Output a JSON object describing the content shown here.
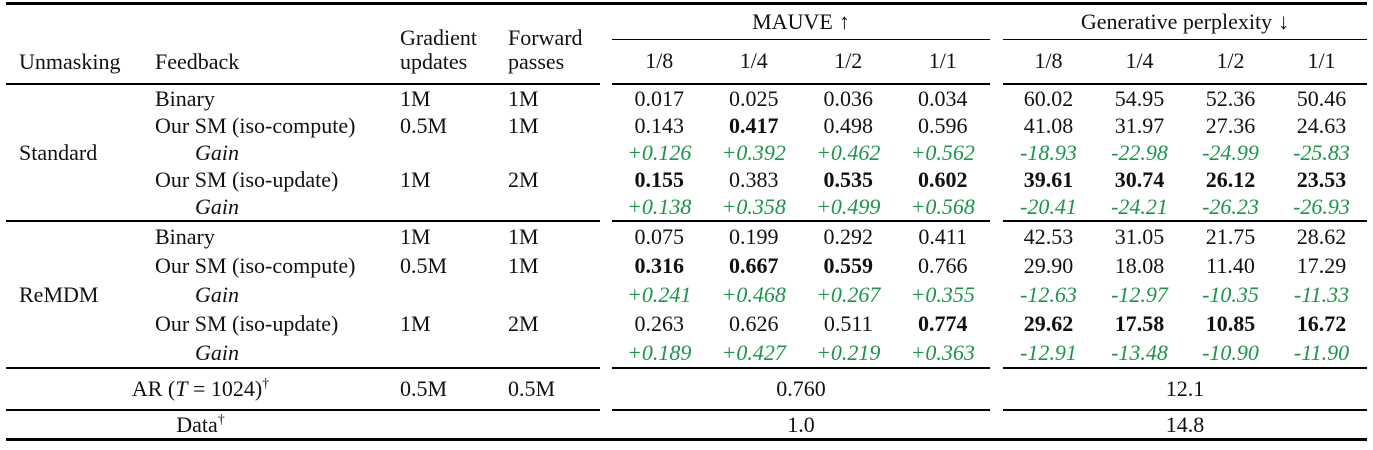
{
  "table": {
    "headers": {
      "unmasking": "Unmasking",
      "feedback": "Feedback",
      "gradient_line1": "Gradient",
      "gradient_line2": "updates",
      "forward_line1": "Forward",
      "forward_line2": "passes",
      "mauve_title": "MAUVE",
      "mauve_arrow": "↑",
      "ppl_title": "Generative perplexity",
      "ppl_arrow": "↓",
      "subcols": [
        "1/8",
        "1/4",
        "1/2",
        "1/1"
      ]
    },
    "colors": {
      "gain_green": "#1a9648",
      "text": "#111111"
    },
    "sections": [
      {
        "unmasking": "Standard",
        "rows": [
          {
            "feedback": "Binary",
            "grad": "1M",
            "fwd": "1M",
            "mauve": [
              "0.017",
              "0.025",
              "0.036",
              "0.034"
            ],
            "mauve_bold": [
              false,
              false,
              false,
              false
            ],
            "ppl": [
              "60.02",
              "54.95",
              "52.36",
              "50.46"
            ],
            "ppl_bold": [
              false,
              false,
              false,
              false
            ]
          },
          {
            "feedback": "Our SM (iso-compute)",
            "grad": "0.5M",
            "fwd": "1M",
            "mauve": [
              "0.143",
              "0.417",
              "0.498",
              "0.596"
            ],
            "mauve_bold": [
              false,
              true,
              false,
              false
            ],
            "ppl": [
              "41.08",
              "31.97",
              "27.36",
              "24.63"
            ],
            "ppl_bold": [
              false,
              false,
              false,
              false
            ]
          },
          {
            "feedback": "Gain",
            "is_gain": true,
            "grad": "",
            "fwd": "",
            "mauve": [
              "+0.126",
              "+0.392",
              "+0.462",
              "+0.562"
            ],
            "ppl": [
              "-18.93",
              "-22.98",
              "-24.99",
              "-25.83"
            ]
          },
          {
            "feedback": "Our SM (iso-update)",
            "grad": "1M",
            "fwd": "2M",
            "mauve": [
              "0.155",
              "0.383",
              "0.535",
              "0.602"
            ],
            "mauve_bold": [
              true,
              false,
              true,
              true
            ],
            "ppl": [
              "39.61",
              "30.74",
              "26.12",
              "23.53"
            ],
            "ppl_bold": [
              true,
              true,
              true,
              true
            ]
          },
          {
            "feedback": "Gain",
            "is_gain": true,
            "grad": "",
            "fwd": "",
            "mauve": [
              "+0.138",
              "+0.358",
              "+0.499",
              "+0.568"
            ],
            "ppl": [
              "-20.41",
              "-24.21",
              "-26.23",
              "-26.93"
            ]
          }
        ]
      },
      {
        "unmasking": "ReMDM",
        "rows": [
          {
            "feedback": "Binary",
            "grad": "1M",
            "fwd": "1M",
            "mauve": [
              "0.075",
              "0.199",
              "0.292",
              "0.411"
            ],
            "mauve_bold": [
              false,
              false,
              false,
              false
            ],
            "ppl": [
              "42.53",
              "31.05",
              "21.75",
              "28.62"
            ],
            "ppl_bold": [
              false,
              false,
              false,
              false
            ]
          },
          {
            "feedback": "Our SM (iso-compute)",
            "grad": "0.5M",
            "fwd": "1M",
            "mauve": [
              "0.316",
              "0.667",
              "0.559",
              "0.766"
            ],
            "mauve_bold": [
              true,
              true,
              true,
              false
            ],
            "ppl": [
              "29.90",
              "18.08",
              "11.40",
              "17.29"
            ],
            "ppl_bold": [
              false,
              false,
              false,
              false
            ]
          },
          {
            "feedback": "Gain",
            "is_gain": true,
            "grad": "",
            "fwd": "",
            "mauve": [
              "+0.241",
              "+0.468",
              "+0.267",
              "+0.355"
            ],
            "ppl": [
              "-12.63",
              "-12.97",
              "-10.35",
              "-11.33"
            ]
          },
          {
            "feedback": "Our SM (iso-update)",
            "grad": "1M",
            "fwd": "2M",
            "mauve": [
              "0.263",
              "0.626",
              "0.511",
              "0.774"
            ],
            "mauve_bold": [
              false,
              false,
              false,
              true
            ],
            "ppl": [
              "29.62",
              "17.58",
              "10.85",
              "16.72"
            ],
            "ppl_bold": [
              true,
              true,
              true,
              true
            ]
          },
          {
            "feedback": "Gain",
            "is_gain": true,
            "grad": "",
            "fwd": "",
            "mauve": [
              "+0.189",
              "+0.427",
              "+0.219",
              "+0.363"
            ],
            "ppl": [
              "-12.91",
              "-13.48",
              "-10.90",
              "-11.90"
            ]
          }
        ]
      }
    ],
    "footer": {
      "ar": {
        "prefix": "AR (",
        "t_var": "T",
        "suffix": " = 1024)",
        "dagger": "†",
        "grad": "0.5M",
        "fwd": "0.5M",
        "mauve": "0.760",
        "ppl": "12.1"
      },
      "data": {
        "label": "Data",
        "dagger": "†",
        "mauve": "1.0",
        "ppl": "14.8"
      }
    }
  }
}
